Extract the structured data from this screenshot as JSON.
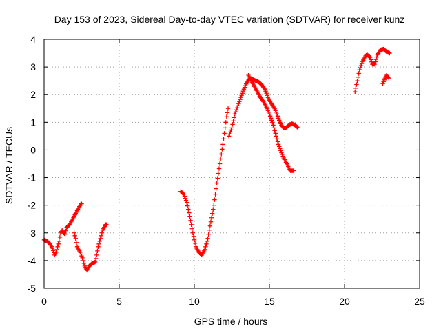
{
  "chart_data": {
    "type": "scatter",
    "title": "Day 153 of 2023, Sidereal Day-to-day VTEC variation (SDTVAR) for receiver kunz",
    "xlabel": "GPS time / hours",
    "ylabel": "SDTVAR / TECUs",
    "xlim": [
      0,
      25
    ],
    "ylim": [
      -5,
      4
    ],
    "xticks": [
      0,
      5,
      10,
      15,
      20,
      25
    ],
    "yticks": [
      -5,
      -4,
      -3,
      -2,
      -1,
      0,
      1,
      2,
      3,
      4
    ],
    "xtick_labels": [
      "0",
      "5",
      "10",
      "15",
      "20",
      "25"
    ],
    "ytick_labels": [
      "-5",
      "-4",
      "-3",
      "-2",
      "-1",
      "0",
      "1",
      "2",
      "3",
      "4"
    ],
    "grid": true,
    "legend": "none",
    "marker": "plus",
    "series": [
      {
        "color": "#ff0000",
        "tracks": [
          [
            [
              0.0,
              -3.25
            ],
            [
              0.2,
              -3.3
            ],
            [
              0.4,
              -3.4
            ],
            [
              0.55,
              -3.55
            ],
            [
              0.7,
              -3.8
            ],
            [
              0.8,
              -3.7
            ],
            [
              0.9,
              -3.5
            ],
            [
              1.0,
              -3.3
            ],
            [
              1.1,
              -3.0
            ],
            [
              1.2,
              -2.9
            ],
            [
              1.3,
              -3.0
            ],
            [
              1.4,
              -3.05
            ],
            [
              1.5,
              -2.8
            ],
            [
              1.7,
              -2.7
            ],
            [
              1.9,
              -2.5
            ],
            [
              2.1,
              -2.3
            ],
            [
              2.3,
              -2.1
            ],
            [
              2.45,
              -1.95
            ],
            [
              2.5,
              -1.95
            ]
          ],
          [
            [
              2.0,
              -3.0
            ],
            [
              2.1,
              -3.2
            ],
            [
              2.2,
              -3.5
            ],
            [
              2.4,
              -3.7
            ],
            [
              2.55,
              -3.9
            ],
            [
              2.7,
              -4.2
            ],
            [
              2.85,
              -4.35
            ],
            [
              3.0,
              -4.2
            ],
            [
              3.2,
              -4.1
            ],
            [
              3.4,
              -4.05
            ],
            [
              3.5,
              -3.8
            ],
            [
              3.6,
              -3.5
            ],
            [
              3.7,
              -3.3
            ],
            [
              3.8,
              -3.1
            ],
            [
              3.9,
              -2.9
            ],
            [
              4.0,
              -2.8
            ],
            [
              4.1,
              -2.7
            ],
            [
              4.15,
              -2.7
            ]
          ],
          [
            [
              9.1,
              -1.5
            ],
            [
              9.3,
              -1.6
            ],
            [
              9.5,
              -1.9
            ],
            [
              9.7,
              -2.4
            ],
            [
              9.9,
              -3.0
            ],
            [
              10.1,
              -3.5
            ],
            [
              10.3,
              -3.7
            ],
            [
              10.5,
              -3.8
            ],
            [
              10.7,
              -3.6
            ],
            [
              10.9,
              -3.2
            ],
            [
              11.1,
              -2.6
            ],
            [
              11.3,
              -2.0
            ],
            [
              11.5,
              -1.2
            ],
            [
              11.7,
              -0.5
            ],
            [
              11.9,
              0.2
            ],
            [
              12.05,
              0.8
            ],
            [
              12.15,
              1.2
            ],
            [
              12.25,
              1.5
            ]
          ],
          [
            [
              12.3,
              0.5
            ],
            [
              12.5,
              0.8
            ],
            [
              12.7,
              1.3
            ],
            [
              12.9,
              1.6
            ],
            [
              13.1,
              1.9
            ],
            [
              13.3,
              2.2
            ],
            [
              13.5,
              2.45
            ],
            [
              13.7,
              2.6
            ],
            [
              13.9,
              2.55
            ],
            [
              14.1,
              2.5
            ],
            [
              14.3,
              2.45
            ],
            [
              14.5,
              2.35
            ],
            [
              14.7,
              2.2
            ],
            [
              14.9,
              1.9
            ],
            [
              15.1,
              1.7
            ],
            [
              15.3,
              1.55
            ],
            [
              15.5,
              1.3
            ],
            [
              15.7,
              1.0
            ],
            [
              15.9,
              0.8
            ],
            [
              16.1,
              0.8
            ],
            [
              16.3,
              0.9
            ],
            [
              16.5,
              0.95
            ],
            [
              16.7,
              0.9
            ],
            [
              16.9,
              0.8
            ]
          ],
          [
            [
              13.6,
              2.7
            ],
            [
              13.8,
              2.5
            ],
            [
              14.0,
              2.3
            ],
            [
              14.2,
              2.1
            ],
            [
              14.4,
              1.9
            ],
            [
              14.6,
              1.75
            ],
            [
              14.8,
              1.55
            ],
            [
              15.0,
              1.3
            ],
            [
              15.2,
              1.0
            ],
            [
              15.4,
              0.6
            ],
            [
              15.6,
              0.2
            ],
            [
              15.8,
              -0.1
            ],
            [
              16.0,
              -0.35
            ],
            [
              16.2,
              -0.55
            ],
            [
              16.4,
              -0.75
            ],
            [
              16.6,
              -0.75
            ]
          ],
          [
            [
              20.7,
              2.1
            ],
            [
              20.85,
              2.5
            ],
            [
              21.0,
              2.9
            ],
            [
              21.2,
              3.2
            ],
            [
              21.4,
              3.4
            ],
            [
              21.5,
              3.45
            ],
            [
              21.7,
              3.35
            ],
            [
              21.85,
              3.1
            ],
            [
              22.0,
              3.1
            ],
            [
              22.2,
              3.45
            ],
            [
              22.4,
              3.62
            ],
            [
              22.6,
              3.65
            ],
            [
              22.8,
              3.55
            ],
            [
              23.0,
              3.5
            ]
          ],
          [
            [
              22.55,
              2.4
            ],
            [
              22.7,
              2.6
            ],
            [
              22.8,
              2.7
            ],
            [
              22.95,
              2.6
            ]
          ]
        ]
      }
    ]
  }
}
